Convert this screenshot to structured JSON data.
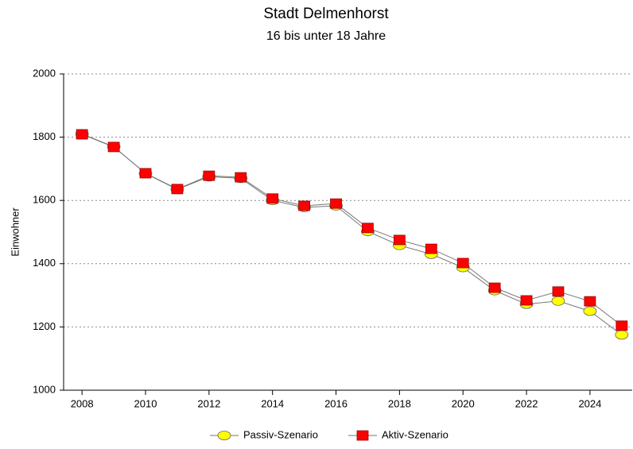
{
  "chart_data": {
    "type": "line",
    "title": "Stadt Delmenhorst",
    "subtitle": "16 bis unter 18 Jahre",
    "y_label": "Einwohner",
    "x": [
      2008,
      2009,
      2010,
      2011,
      2012,
      2013,
      2014,
      2015,
      2016,
      2017,
      2018,
      2019,
      2020,
      2021,
      2022,
      2023,
      2024,
      2025
    ],
    "series": [
      {
        "name": "Passiv-Szenario",
        "color": "#ffff00",
        "marker": "circle",
        "values": [
          1810,
          1770,
          1685,
          1635,
          1675,
          1670,
          1600,
          1578,
          1583,
          1502,
          1458,
          1430,
          1388,
          1315,
          1272,
          1282,
          1250,
          1175
        ]
      },
      {
        "name": "Aktiv-Szenario",
        "color": "#ff0000",
        "marker": "square",
        "values": [
          1809,
          1769,
          1686,
          1636,
          1678,
          1673,
          1606,
          1583,
          1590,
          1513,
          1475,
          1447,
          1402,
          1324,
          1284,
          1312,
          1281,
          1204
        ]
      }
    ],
    "xlim": [
      2007.42,
      2025.33
    ],
    "xticks": [
      2008,
      2010,
      2012,
      2014,
      2016,
      2018,
      2020,
      2022,
      2024
    ],
    "ylim": [
      1000,
      2000
    ],
    "yticks": [
      1000,
      1200,
      1400,
      1600,
      1800,
      2000
    ],
    "grid": true,
    "legend": "bottom"
  }
}
